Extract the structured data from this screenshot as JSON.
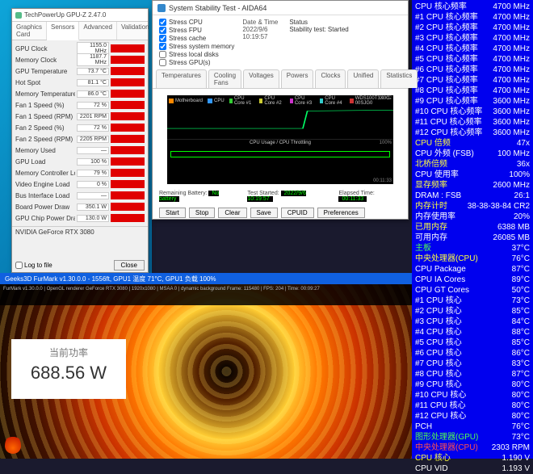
{
  "gpuz": {
    "title": "TechPowerUp GPU-Z 2.47.0",
    "tabs": [
      "Graphics Card",
      "Sensors",
      "Advanced",
      "Validation"
    ],
    "active_tab": 1,
    "sensors": [
      {
        "label": "GPU Clock",
        "value": "1155.0 MHz"
      },
      {
        "label": "Memory Clock",
        "value": "1187.7 MHz"
      },
      {
        "label": "GPU Temperature",
        "value": "73.7 °C"
      },
      {
        "label": "Hot Spot",
        "value": "81.1 °C"
      },
      {
        "label": "Memory Temperature",
        "value": "86.0 °C"
      },
      {
        "label": "Fan 1 Speed (%)",
        "value": "72 %"
      },
      {
        "label": "Fan 1 Speed (RPM)",
        "value": "2201 RPM"
      },
      {
        "label": "Fan 2 Speed (%)",
        "value": "72 %"
      },
      {
        "label": "Fan 2 Speed (RPM)",
        "value": "2205 RPM"
      },
      {
        "label": "Memory Used",
        "value": "—"
      },
      {
        "label": "GPU Load",
        "value": "100 %"
      },
      {
        "label": "Memory Controller Load",
        "value": "79 %"
      },
      {
        "label": "Video Engine Load",
        "value": "0 %"
      },
      {
        "label": "Bus Interface Load",
        "value": "—"
      },
      {
        "label": "Board Power Draw",
        "value": "350.1 W"
      },
      {
        "label": "GPU Chip Power Draw",
        "value": "130.0 W"
      }
    ],
    "log_label": "Log to file",
    "close_label": "Close",
    "gpu_name": "NVIDIA GeForce RTX 3080"
  },
  "aida": {
    "title": "System Stability Test - AIDA64",
    "checks": [
      {
        "label": "Stress CPU",
        "checked": true
      },
      {
        "label": "Stress FPU",
        "checked": true
      },
      {
        "label": "Stress cache",
        "checked": true
      },
      {
        "label": "Stress system memory",
        "checked": true
      },
      {
        "label": "Stress local disks",
        "checked": false
      },
      {
        "label": "Stress GPU(s)",
        "checked": false
      }
    ],
    "meta": {
      "date_label": "Date & Time",
      "date_value": "2022/9/6 10:19:57",
      "status_label": "Status",
      "status_value": "Stability test: Started"
    },
    "tabs": [
      "Temperatures",
      "Cooling Fans",
      "Voltages",
      "Powers",
      "Clocks",
      "Unified",
      "Statistics"
    ],
    "legend": [
      {
        "label": "Motherboard",
        "color": "#ff8800"
      },
      {
        "label": "CPU",
        "color": "#3399ff"
      },
      {
        "label": "CPU Core #1",
        "color": "#33cc33"
      },
      {
        "label": "CPU Core #2",
        "color": "#cccc33"
      },
      {
        "label": "CPU Core #3",
        "color": "#cc33cc"
      },
      {
        "label": "CPU Core #4",
        "color": "#33cccc"
      },
      {
        "label": "WDS100T3X0C-00SJG0",
        "color": "#cc3333"
      }
    ],
    "temp_line_color": "#00ff66",
    "graph2_caption": "CPU Usage / CPU Throttling",
    "statusline": {
      "battery_label": "Remaining Battery:",
      "battery_value": "No battery",
      "started_label": "Test Started:",
      "started_value": "2022/9/6 10:19:57",
      "elapsed_label": "Elapsed Time:",
      "elapsed_value": "00:11:33"
    },
    "buttons": [
      "Start",
      "Stop",
      "Clear",
      "Save",
      "CPUID",
      "Preferences"
    ]
  },
  "furmark": {
    "bar_text": "Geeks3D FurMark v1.30.0.0 - 1556ft, GPU1 温度 71°C, GPU1 负载 100%",
    "overlay_top": "FurMark v1.30.0.0 | OpenGL renderer\nGeForce RTX 3080 | 1920x1080 | MSAA 0 | dynamic background\nFrame: 115480 | FPS: 204 | Time: 00:09:27",
    "power_label": "当前功率",
    "power_value": "688.56 W"
  },
  "right": {
    "rows": [
      {
        "cls": "",
        "l": "CPU 核心频率",
        "v": "4700 MHz"
      },
      {
        "cls": "",
        "l": "#1 CPU 核心频率",
        "v": "4700 MHz"
      },
      {
        "cls": "",
        "l": "#2 CPU 核心频率",
        "v": "4700 MHz"
      },
      {
        "cls": "",
        "l": "#3 CPU 核心频率",
        "v": "4700 MHz"
      },
      {
        "cls": "",
        "l": "#4 CPU 核心频率",
        "v": "4700 MHz"
      },
      {
        "cls": "",
        "l": "#5 CPU 核心频率",
        "v": "4700 MHz"
      },
      {
        "cls": "",
        "l": "#6 CPU 核心频率",
        "v": "4700 MHz"
      },
      {
        "cls": "",
        "l": "#7 CPU 核心频率",
        "v": "4700 MHz"
      },
      {
        "cls": "",
        "l": "#8 CPU 核心频率",
        "v": "4700 MHz"
      },
      {
        "cls": "",
        "l": "#9 CPU 核心频率",
        "v": "3600 MHz"
      },
      {
        "cls": "",
        "l": "#10 CPU 核心频率",
        "v": "3600 MHz"
      },
      {
        "cls": "",
        "l": "#11 CPU 核心频率",
        "v": "3600 MHz"
      },
      {
        "cls": "",
        "l": "#12 CPU 核心频率",
        "v": "3600 MHz"
      },
      {
        "cls": "y",
        "l": "CPU 倍频",
        "v": "47x"
      },
      {
        "cls": "",
        "l": "CPU 外频 (FSB)",
        "v": "100 MHz"
      },
      {
        "cls": "y",
        "l": "北桥倍频",
        "v": "36x"
      },
      {
        "cls": "",
        "l": "CPU 使用率",
        "v": "100%"
      },
      {
        "cls": "y",
        "l": "显存频率",
        "v": "2600 MHz"
      },
      {
        "cls": "",
        "l": "DRAM : FSB",
        "v": "26:1"
      },
      {
        "cls": "y",
        "l": "内存计时",
        "v": "38-38-38-84 CR2"
      },
      {
        "cls": "",
        "l": "内存使用率",
        "v": "20%"
      },
      {
        "cls": "y",
        "l": "已用内存",
        "v": "6388 MB"
      },
      {
        "cls": "",
        "l": "可用内存",
        "v": "26085 MB"
      },
      {
        "cls": "g",
        "l": "主板",
        "v": "37°C"
      },
      {
        "cls": "y",
        "l": "中央处理器(CPU)",
        "v": "76°C"
      },
      {
        "cls": "",
        "l": "CPU Package",
        "v": "87°C"
      },
      {
        "cls": "",
        "l": "CPU IA Cores",
        "v": "89°C"
      },
      {
        "cls": "",
        "l": "CPU GT Cores",
        "v": "50°C"
      },
      {
        "cls": "",
        "l": "#1 CPU 核心",
        "v": "73°C"
      },
      {
        "cls": "",
        "l": "#2 CPU 核心",
        "v": "85°C"
      },
      {
        "cls": "",
        "l": "#3 CPU 核心",
        "v": "84°C"
      },
      {
        "cls": "",
        "l": "#4 CPU 核心",
        "v": "88°C"
      },
      {
        "cls": "",
        "l": "#5 CPU 核心",
        "v": "85°C"
      },
      {
        "cls": "",
        "l": "#6 CPU 核心",
        "v": "86°C"
      },
      {
        "cls": "",
        "l": "#7 CPU 核心",
        "v": "83°C"
      },
      {
        "cls": "",
        "l": "#8 CPU 核心",
        "v": "87°C"
      },
      {
        "cls": "",
        "l": "#9 CPU 核心",
        "v": "80°C"
      },
      {
        "cls": "",
        "l": "#10 CPU 核心",
        "v": "80°C"
      },
      {
        "cls": "",
        "l": "#11 CPU 核心",
        "v": "80°C"
      },
      {
        "cls": "",
        "l": "#12 CPU 核心",
        "v": "80°C"
      },
      {
        "cls": "",
        "l": "PCH",
        "v": "76°C"
      },
      {
        "cls": "g",
        "l": "图形处理器(GPU)",
        "v": "73°C"
      },
      {
        "cls": "r",
        "l": "中央处理器(CPU)",
        "v": "2303 RPM"
      },
      {
        "cls": "y",
        "l": "CPU 核心",
        "v": "1.190 V"
      },
      {
        "cls": "",
        "l": "CPU VID",
        "v": "1.193 V"
      }
    ]
  }
}
